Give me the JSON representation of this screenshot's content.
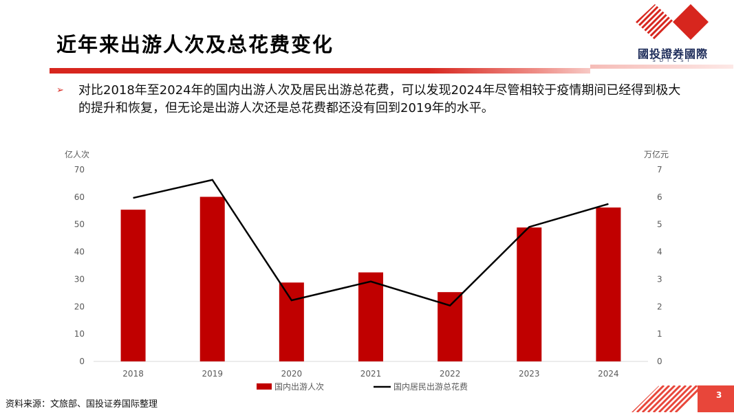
{
  "slide": {
    "title": "近年来出游人次及总花费变化",
    "bullet": "对比2018年至2024年的国内出游人次及居民出游总花费，可以发现2024年尽管相较于疫情期间已经得到极大的提升和恢复，但无论是出游人次还是总花费都还没有回到2019年的水平。",
    "source": "资料来源：文旅部、国投证券国际整理",
    "page_number": "3"
  },
  "logo": {
    "text": "國投證券國際",
    "sub": "SDICSI"
  },
  "colors": {
    "accent": "#d7261e",
    "bar": "#c00000",
    "line": "#000000"
  },
  "chart_data": {
    "type": "bar",
    "categories": [
      "2018",
      "2019",
      "2020",
      "2021",
      "2022",
      "2023",
      "2024"
    ],
    "left_axis_unit": "亿人次",
    "right_axis_unit": "万亿元",
    "left_ylim": [
      0,
      70
    ],
    "right_ylim": [
      0,
      7
    ],
    "left_ticks": [
      "0",
      "10",
      "20",
      "30",
      "40",
      "50",
      "60",
      "70"
    ],
    "right_ticks": [
      "0",
      "1",
      "2",
      "3",
      "4",
      "5",
      "6",
      "7"
    ],
    "series": [
      {
        "name": "国内出游人次",
        "type": "bar",
        "axis": "left",
        "values": [
          55.4,
          60.1,
          28.8,
          32.5,
          25.3,
          48.9,
          56.2
        ]
      },
      {
        "name": "国内居民出游总花费",
        "type": "line",
        "axis": "right",
        "values": [
          5.97,
          6.63,
          2.23,
          2.92,
          2.04,
          4.91,
          5.75
        ]
      }
    ],
    "legend_position": "bottom",
    "grid": false
  }
}
